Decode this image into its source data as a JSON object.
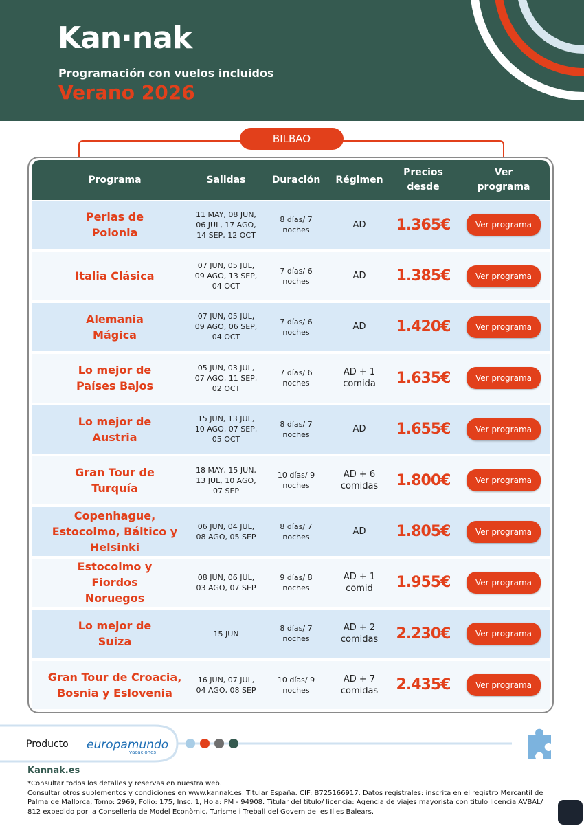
{
  "header": {
    "logo": "Kan·nak",
    "subtitle": "Programación con vuelos incluidos",
    "title": "Verano 2026"
  },
  "city": "BILBAO",
  "table": {
    "headers": [
      "Programa",
      "Salidas",
      "Duración",
      "Régimen",
      "Precios desde",
      "Ver programa"
    ],
    "rows": [
      [
        "Perlas de Polonia",
        "11 MAY, 08 JUN, 06 JUL, 17 AGO, 14 SEP, 12 OCT",
        "8 días/ 7 noches",
        "AD",
        "1.365€",
        "Ver programa"
      ],
      [
        "Italia Clásica",
        "07 JUN, 05 JUL, 09 AGO, 13 SEP, 04 OCT",
        "7 días/ 6 noches",
        "AD",
        "1.385€",
        "Ver programa"
      ],
      [
        "Alemania Mágica",
        "07 JUN, 05 JUL, 09 AGO, 06 SEP, 04 OCT",
        "7 días/ 6 noches",
        "AD",
        "1.420€",
        "Ver programa"
      ],
      [
        "Lo mejor de Países Bajos",
        "05 JUN, 03 JUL, 07 AGO, 11 SEP, 02 OCT",
        "7 días/ 6 noches",
        "AD + 1 comida",
        "1.635€",
        "Ver programa"
      ],
      [
        "Lo mejor de Austria",
        "15 JUN, 13 JUL, 10 AGO, 07 SEP, 05 OCT",
        "8 días/ 7 noches",
        "AD",
        "1.655€",
        "Ver programa"
      ],
      [
        "Gran Tour de Turquía",
        "18 MAY, 15 JUN, 13 JUL, 10 AGO, 07 SEP",
        "10 días/ 9 noches",
        "AD + 6 comidas",
        "1.800€",
        "Ver programa"
      ],
      [
        "Copenhague, Estocolmo, Báltico y Helsinki",
        "06 JUN, 04 JUL, 08 AGO, 05 SEP",
        "8 días/ 7 noches",
        "AD",
        "1.805€",
        "Ver programa"
      ],
      [
        "Estocolmo y Fiordos Noruegos",
        "08 JUN, 06 JUL, 03 AGO, 07 SEP",
        "9 días/ 8 noches",
        "AD + 1 comid",
        "1.955€",
        "Ver programa"
      ],
      [
        "Lo mejor de Suiza",
        "15 JUN",
        "8 días/ 7 noches",
        "AD + 2 comidas",
        "2.230€",
        "Ver programa"
      ],
      [
        "Gran Tour de Croacia, Bosnia y Eslovenia",
        "16 JUN, 07 JUL, 04 AGO, 08 SEP",
        "10 días/ 9 noches",
        "AD + 7 comidas",
        "2.435€",
        "Ver programa"
      ]
    ]
  },
  "footer": {
    "product_label": "Producto",
    "brand": "europamundo",
    "brand_sub": "vacaciones",
    "site": "Kannak.es",
    "notes": [
      "*Consultar todos los detalles y reservas en nuestra web.",
      "Consultar otros suplementos y condiciones en www.kannak.es. Titular España. CIF: B725166917. Datos registrales: inscrita en el registro Mercantil de Palma de Mallorca, Tomo: 2969, Folio: 175, Insc. 1, Hoja: PM - 94908. Titular del titulo/ licencia: Agencia de viajes mayorista con titulo licencia AVBAL/ 812 expedido por la Conselleria de Model Econòmic, Turisme i Treball del Govern de les Illes Balears."
    ]
  }
}
